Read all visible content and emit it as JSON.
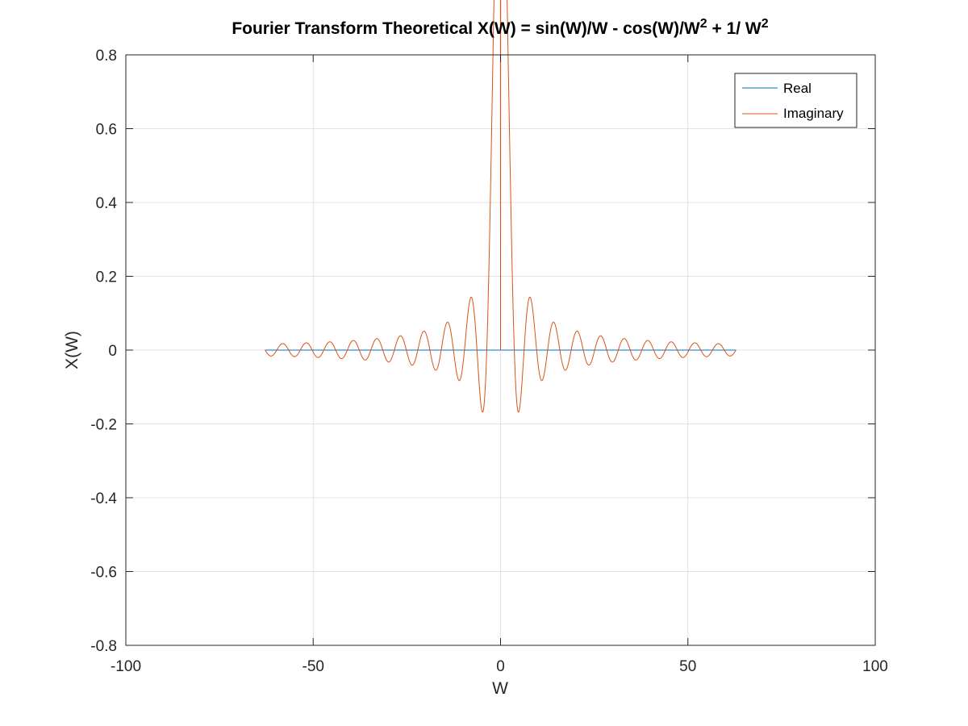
{
  "chart_data": {
    "type": "line",
    "title": {
      "part1": "Fourier Transform Theoretical X(W) = sin(W)/W - cos(W)/W",
      "sup1": "2",
      "part2": " + 1/ W",
      "sup2": "2"
    },
    "xlabel": "W",
    "ylabel": "X(W)",
    "xlim": [
      -100,
      100
    ],
    "ylim": [
      -0.8,
      0.8
    ],
    "xticks": [
      -100,
      -50,
      0,
      50,
      100
    ],
    "xtick_labels": [
      "-100",
      "-50",
      "0",
      "50",
      "100"
    ],
    "yticks": [
      -0.8,
      -0.6,
      -0.4,
      -0.2,
      0,
      0.2,
      0.4,
      0.6,
      0.8
    ],
    "ytick_labels": [
      "-0.8",
      "-0.6",
      "-0.4",
      "-0.2",
      "0",
      "0.2",
      "0.4",
      "0.6",
      "0.8"
    ],
    "grid": true,
    "legend_position": "top-right",
    "x_range": [
      -62.83,
      62.83
    ],
    "series": [
      {
        "name": "Real",
        "color": "#0072BD",
        "function": "0"
      },
      {
        "name": "Imaginary",
        "color": "#D95319",
        "function": "sin(W)/W - cos(W)/W^2 + 1/W^2"
      }
    ]
  }
}
